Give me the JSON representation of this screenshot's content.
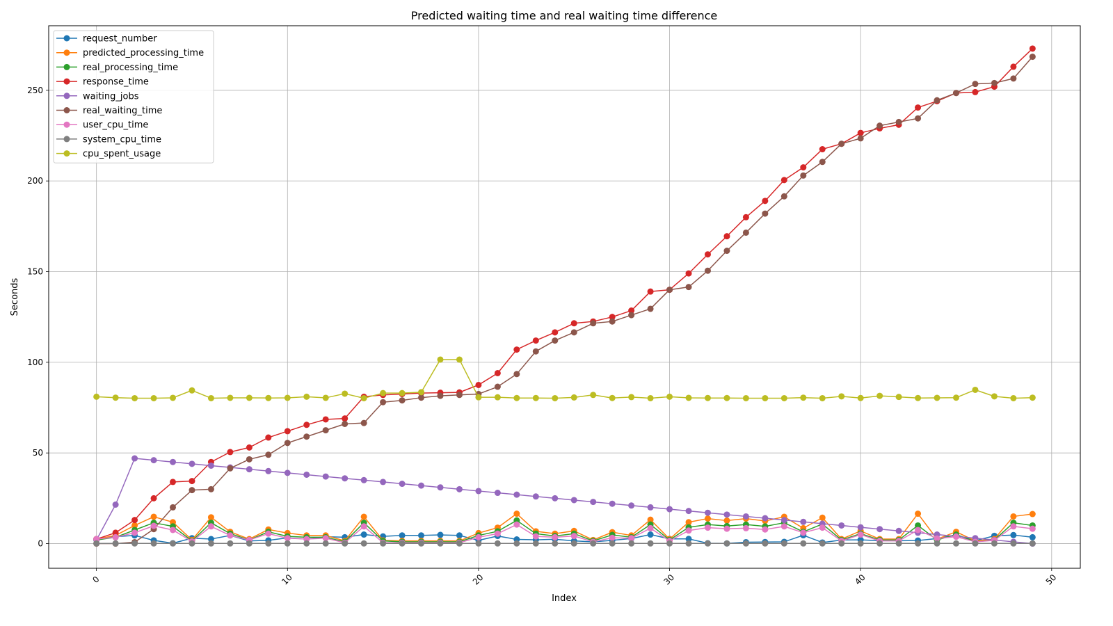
{
  "chart_data": {
    "type": "line",
    "title": "Predicted waiting time and real waiting time difference",
    "xlabel": "Index",
    "ylabel": "Seconds",
    "xlim": [
      -2.5,
      51.5
    ],
    "ylim": [
      -13.6,
      285.6
    ],
    "x_ticks": [
      0,
      10,
      20,
      30,
      40,
      50
    ],
    "y_ticks": [
      0,
      50,
      100,
      150,
      200,
      250
    ],
    "grid": true,
    "legend_position": "top-left",
    "x": [
      0,
      1,
      2,
      3,
      4,
      5,
      6,
      7,
      8,
      9,
      10,
      11,
      12,
      13,
      14,
      15,
      16,
      17,
      18,
      19,
      20,
      21,
      22,
      23,
      24,
      25,
      26,
      27,
      28,
      29,
      30,
      31,
      32,
      33,
      34,
      35,
      36,
      37,
      38,
      39,
      40,
      41,
      42,
      43,
      44,
      45,
      46,
      47,
      48,
      49
    ],
    "series": [
      {
        "name": "request_number",
        "color": "#1f77b4",
        "values": [
          2.5,
          3.8,
          4.5,
          1.8,
          0.2,
          3,
          2.5,
          4.5,
          1.5,
          1.8,
          3.2,
          2.5,
          3.8,
          3.5,
          5,
          4,
          4.5,
          4.5,
          4.8,
          4.5,
          1.8,
          4.2,
          2.3,
          2.1,
          2.4,
          1.5,
          1,
          1.8,
          2.8,
          5,
          2.6,
          2.6,
          0.2,
          0.1,
          0.8,
          0.9,
          1,
          4.6,
          0.6,
          2,
          2.1,
          1.6,
          1.6,
          1.7,
          2.8,
          4.8,
          1.6,
          4.3,
          4.7,
          3.5
        ]
      },
      {
        "name": "predicted_processing_time",
        "color": "#ff7f0e",
        "values": [
          2.5,
          4.5,
          10,
          14.8,
          11.8,
          2,
          14.5,
          6.5,
          2.5,
          7.8,
          5.8,
          4.5,
          4.5,
          1.5,
          14.8,
          1.8,
          1.5,
          1.5,
          1.5,
          1.5,
          5.8,
          8.8,
          16.5,
          6.8,
          5.5,
          7,
          2,
          6.3,
          4.5,
          13.2,
          2.5,
          11.8,
          13.8,
          12.7,
          13.8,
          12.5,
          14.8,
          8.5,
          14.3,
          2.5,
          7,
          2.5,
          2.5,
          16.5,
          2.5,
          6.5,
          1.5,
          2.5,
          15,
          16.3
        ]
      },
      {
        "name": "real_processing_time",
        "color": "#2ca02c",
        "values": [
          2,
          3.5,
          7.5,
          11.5,
          9.5,
          1.5,
          11.5,
          5.5,
          2,
          6.5,
          4,
          3.5,
          3.5,
          1,
          11.5,
          1.5,
          1,
          1,
          1,
          1,
          4.5,
          6.8,
          12.8,
          5.5,
          4.2,
          5.5,
          1.5,
          4.8,
          3.5,
          10.5,
          2,
          9,
          10.5,
          9.7,
          10.5,
          9.5,
          11.5,
          6.5,
          10.8,
          2,
          5.5,
          2,
          2,
          10,
          2,
          5,
          1,
          2,
          11.5,
          10
        ]
      },
      {
        "name": "response_time",
        "color": "#d62728",
        "values": [
          2.5,
          6,
          13,
          25,
          34,
          34.5,
          45,
          50.5,
          53,
          58.5,
          62,
          65.5,
          68.5,
          69,
          81,
          82,
          82.5,
          83,
          83.2,
          83.4,
          87.5,
          94,
          107,
          112,
          116.5,
          121.5,
          122.5,
          125,
          128.5,
          139,
          140,
          149,
          159.5,
          169.5,
          180,
          189,
          200.5,
          207.5,
          217.5,
          220.5,
          226.5,
          229,
          231,
          240.5,
          244,
          248.5,
          249,
          252,
          263,
          273
        ]
      },
      {
        "name": "waiting_jobs",
        "color": "#9467bd",
        "values": [
          2,
          21.5,
          47,
          46,
          45,
          44,
          43,
          42,
          41,
          40,
          39,
          38,
          37,
          36,
          35,
          34,
          33,
          32,
          31,
          30,
          29,
          28,
          27,
          26,
          25,
          24,
          23,
          22,
          21,
          20,
          19,
          18,
          17,
          16,
          15,
          14,
          13,
          12,
          11,
          10,
          9,
          8,
          7,
          6,
          5,
          4,
          3,
          2,
          1,
          0
        ]
      },
      {
        "name": "real_waiting_time",
        "color": "#8c564b",
        "values": [
          0,
          0,
          0.8,
          8,
          20,
          29.5,
          30,
          41.5,
          46.5,
          49,
          55.5,
          59,
          62.5,
          66,
          66.5,
          78,
          79,
          80.5,
          81.5,
          82,
          82.5,
          86.5,
          93.5,
          106,
          112,
          116.5,
          121.5,
          122.5,
          126,
          129.5,
          140,
          141.5,
          150.5,
          161.5,
          171.5,
          182,
          191.5,
          203,
          210.5,
          220.5,
          223.5,
          230.5,
          232.5,
          234.5,
          244.5,
          248.5,
          253.5,
          254,
          256.5,
          268.5
        ]
      },
      {
        "name": "user_cpu_time",
        "color": "#e377c2",
        "values": [
          2.5,
          3.5,
          6,
          9.8,
          7.5,
          1.2,
          9.5,
          4.5,
          2,
          5.5,
          3,
          2.5,
          3,
          0.5,
          9.5,
          0.5,
          0.5,
          0.5,
          0.5,
          0.5,
          3.5,
          5.5,
          10.5,
          4,
          3.5,
          4.2,
          1,
          3.2,
          3,
          8.5,
          1.5,
          7.2,
          8.8,
          8.2,
          8.5,
          7.8,
          9.5,
          6,
          8.8,
          1.5,
          5,
          1.5,
          1.5,
          7.5,
          2.8,
          3.8,
          1,
          1.8,
          9.5,
          8.2
        ]
      },
      {
        "name": "system_cpu_time",
        "color": "#7f7f7f",
        "values": [
          0.1,
          0.1,
          0.1,
          0.1,
          0.1,
          0.1,
          0.1,
          0.1,
          0.1,
          0.1,
          0.1,
          0.1,
          0.1,
          0.1,
          0.1,
          0.1,
          0.1,
          0.1,
          0.1,
          0.1,
          0.1,
          0.1,
          0.1,
          0.1,
          0.1,
          0.1,
          0.1,
          0.1,
          0.1,
          0.1,
          0.1,
          0.1,
          0.1,
          0.1,
          0.1,
          0.1,
          0.1,
          0.1,
          0.1,
          0.1,
          0.1,
          0.1,
          0.1,
          0.1,
          0.1,
          0.1,
          0.1,
          0.1,
          0.1,
          0.1
        ]
      },
      {
        "name": "cpu_spent_usage",
        "color": "#bcbd22",
        "values": [
          81,
          80.5,
          80.2,
          80.2,
          80.4,
          84.5,
          80.2,
          80.4,
          80.4,
          80.3,
          80.4,
          81,
          80.4,
          82.7,
          80.2,
          83,
          83,
          83.5,
          101.5,
          101.5,
          80.7,
          80.7,
          80.3,
          80.3,
          80.2,
          80.6,
          82,
          80.3,
          80.8,
          80.2,
          81,
          80.4,
          80.3,
          80.3,
          80.2,
          80.2,
          80.2,
          80.5,
          80.2,
          81.2,
          80.3,
          81.5,
          80.9,
          80.3,
          80.4,
          80.5,
          84.8,
          81.2,
          80.2,
          80.5
        ]
      }
    ]
  }
}
